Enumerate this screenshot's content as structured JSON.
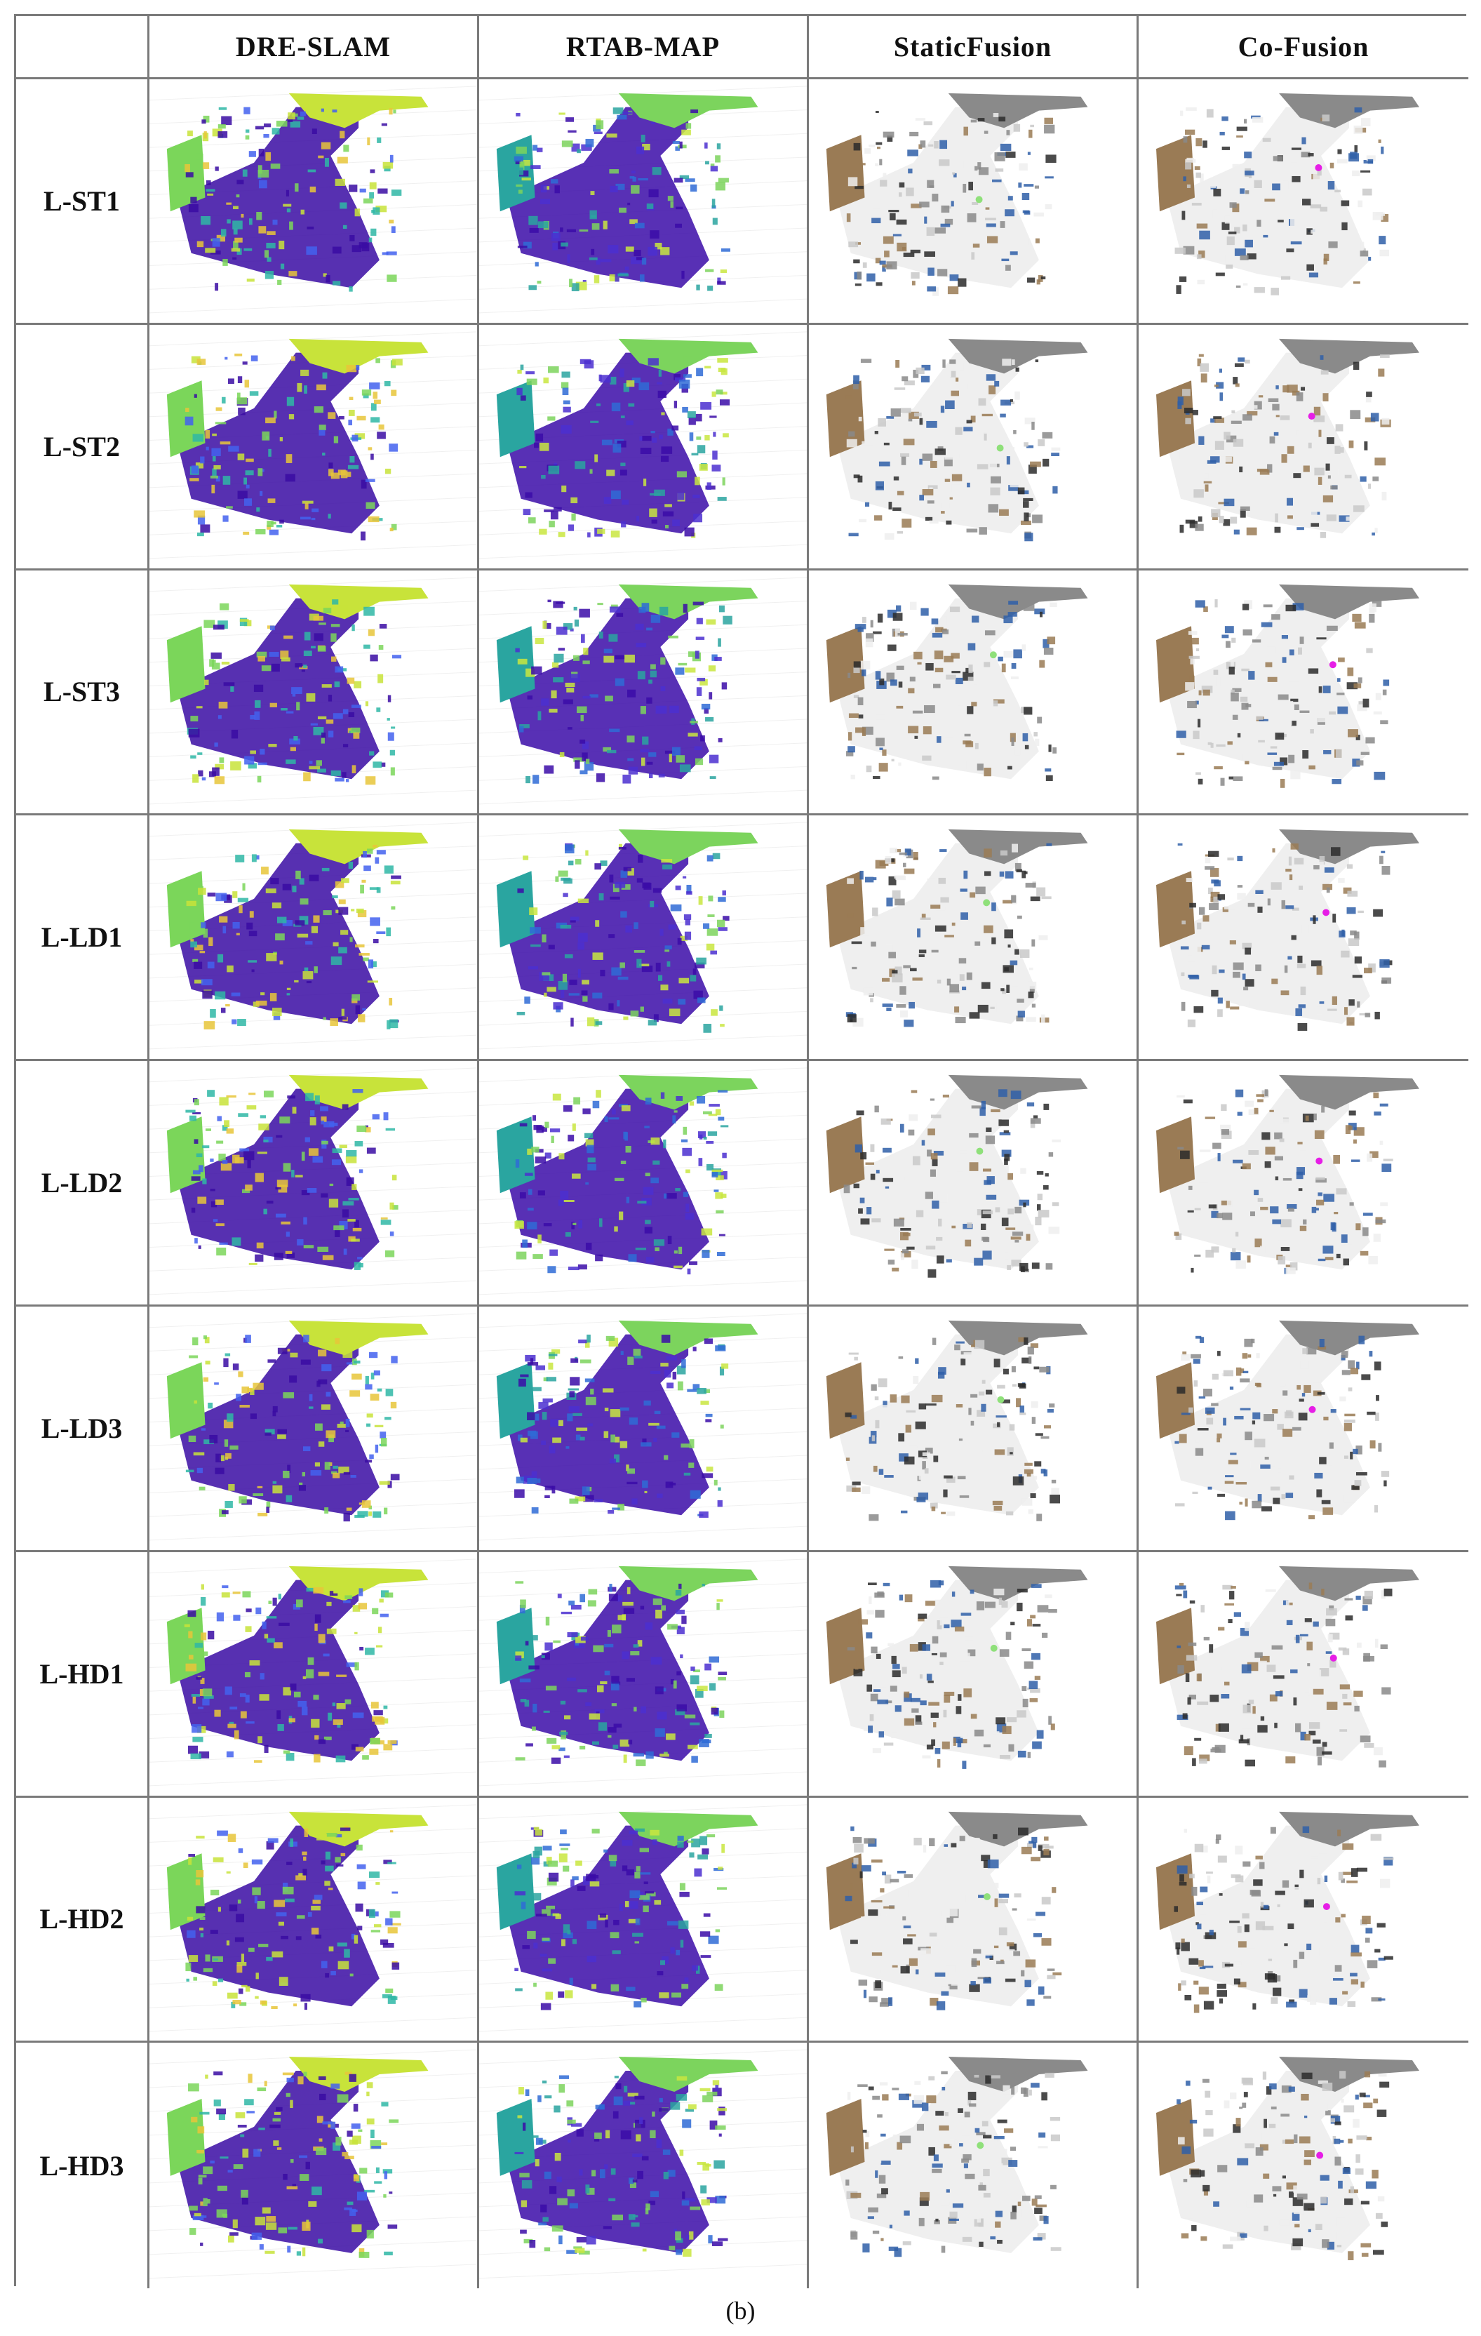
{
  "columns": [
    "",
    "DRE-SLAM",
    "RTAB-MAP",
    "StaticFusion",
    "Co-Fusion"
  ],
  "rows": [
    "L-ST1",
    "L-ST2",
    "L-ST3",
    "L-LD1",
    "L-LD2",
    "L-LD3",
    "L-HD1",
    "L-HD2",
    "L-HD3"
  ],
  "caption": "(b)",
  "colors": {
    "dre_palette": [
      "#3a0ca3",
      "#4361ee",
      "#2fb7a6",
      "#7bd65a",
      "#c8e33a",
      "#e8c53a"
    ],
    "rtab_palette": [
      "#3b0ca8",
      "#4b2fd0",
      "#2f6bd6",
      "#2aa5a0",
      "#7cd45d",
      "#c9e640"
    ],
    "fusion_palette": [
      "#eeeeee",
      "#c9c9c9",
      "#8a8a8a",
      "#2b2b2b",
      "#2f5fa8",
      "#9a7b55"
    ],
    "marker_magenta": "#e61ee6",
    "marker_green": "#8fe07a"
  },
  "images": {
    "dre_style": "pointcloud-colored",
    "rtab_style": "pointcloud-colored",
    "staticfusion_style": "pointcloud-rgb",
    "cofusion_style": "pointcloud-rgb"
  }
}
